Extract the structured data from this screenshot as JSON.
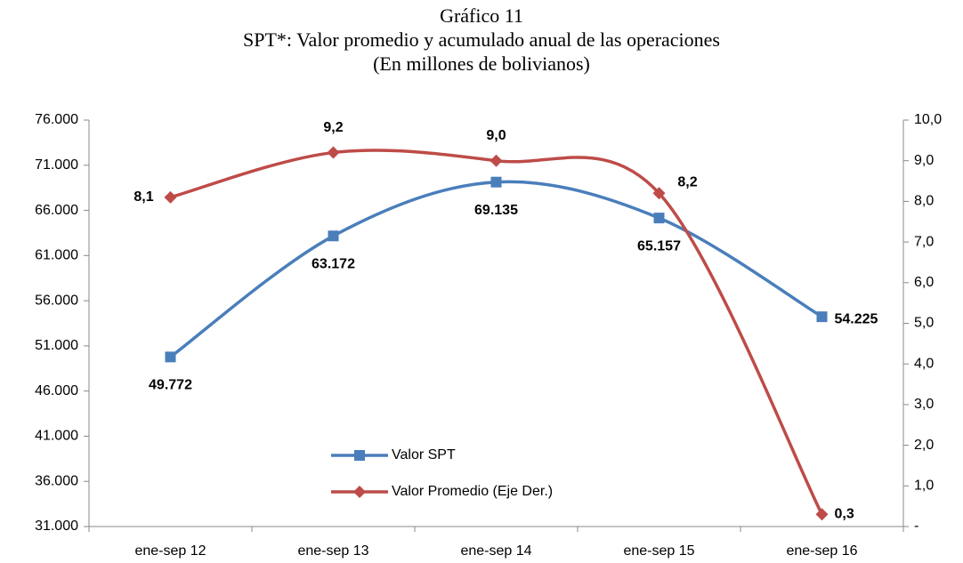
{
  "chart_data": {
    "type": "line",
    "title": "Gráfico 11",
    "subtitle": "SPT*: Valor promedio y acumulado anual de las operaciones",
    "unit": "(En millones de bolivianos)",
    "categories": [
      "ene-sep 12",
      "ene-sep 13",
      "ene-sep 14",
      "ene-sep 15",
      "ene-sep 16"
    ],
    "series": [
      {
        "name": "Valor SPT",
        "color": "#4a7ebb",
        "label_color": "#2e75c0",
        "marker": "square",
        "values": [
          49772,
          63172,
          69135,
          65157,
          54225
        ],
        "value_labels": [
          "49.772",
          "63.172",
          "69.135",
          "65.157",
          "54.225"
        ]
      },
      {
        "name": "Valor Promedio (Eje Der.)",
        "color": "#be4b48",
        "label_color": "#953735",
        "marker": "diamond",
        "axis": "y2",
        "values": [
          8.1,
          9.2,
          9.0,
          8.2,
          0.3
        ],
        "value_labels": [
          "8,1",
          "9,2",
          "9,0",
          "8,2",
          "0,3"
        ]
      }
    ],
    "ylim": [
      31000,
      76000
    ],
    "yticks": [
      {
        "value": 31000,
        "label": "31.000"
      },
      {
        "value": 36000,
        "label": "36.000"
      },
      {
        "value": 41000,
        "label": "41.000"
      },
      {
        "value": 46000,
        "label": "46.000"
      },
      {
        "value": 51000,
        "label": "51.000"
      },
      {
        "value": 56000,
        "label": "56.000"
      },
      {
        "value": 61000,
        "label": "61.000"
      },
      {
        "value": 66000,
        "label": "66.000"
      },
      {
        "value": 71000,
        "label": "71.000"
      },
      {
        "value": 76000,
        "label": "76.000"
      }
    ],
    "y2lim": [
      0,
      10
    ],
    "y2ticks": [
      {
        "value": 0,
        "label": "-"
      },
      {
        "value": 1,
        "label": "1,0"
      },
      {
        "value": 2,
        "label": "2,0"
      },
      {
        "value": 3,
        "label": "3,0"
      },
      {
        "value": 4,
        "label": "4,0"
      },
      {
        "value": 5,
        "label": "5,0"
      },
      {
        "value": 6,
        "label": "6,0"
      },
      {
        "value": 7,
        "label": "7,0"
      },
      {
        "value": 8,
        "label": "8,0"
      },
      {
        "value": 9,
        "label": "9,0"
      },
      {
        "value": 10,
        "label": "10,0"
      }
    ],
    "smooth": true,
    "grid": false
  }
}
